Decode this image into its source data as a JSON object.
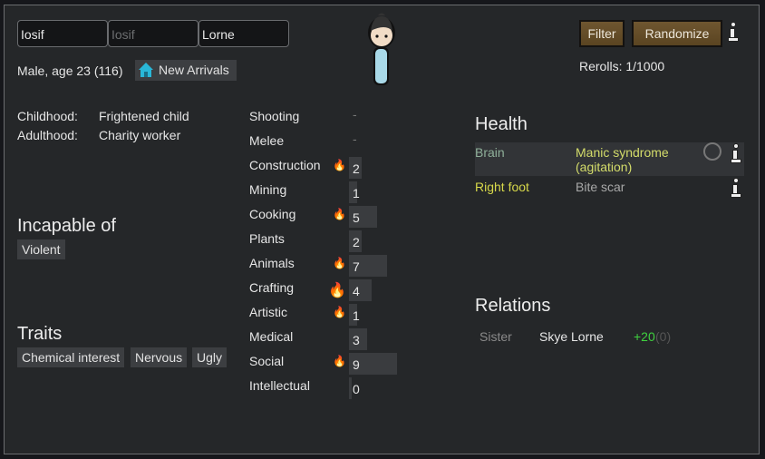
{
  "name": {
    "first": "Iosif",
    "nick_placeholder": "Iosif",
    "last": "Lorne"
  },
  "summary": "Male, age 23 (116)",
  "faction": {
    "label": "New Arrivals",
    "icon": "house-icon"
  },
  "buttons": {
    "filter": "Filter",
    "randomize": "Randomize"
  },
  "rerolls": "Rerolls: 1/1000",
  "backstory": [
    {
      "label": "Childhood:",
      "value": "Frightened child"
    },
    {
      "label": "Adulthood:",
      "value": "Charity worker"
    }
  ],
  "incapable": {
    "title": "Incapable of",
    "items": [
      "Violent"
    ]
  },
  "traits": {
    "title": "Traits",
    "items": [
      "Chemical interest",
      "Nervous",
      "Ugly"
    ]
  },
  "skills": [
    {
      "name": "Shooting",
      "level": "-",
      "passion": 0
    },
    {
      "name": "Melee",
      "level": "-",
      "passion": 0
    },
    {
      "name": "Construction",
      "level": "2",
      "passion": 1
    },
    {
      "name": "Mining",
      "level": "1",
      "passion": 0
    },
    {
      "name": "Cooking",
      "level": "5",
      "passion": 1
    },
    {
      "name": "Plants",
      "level": "2",
      "passion": 0
    },
    {
      "name": "Animals",
      "level": "7",
      "passion": 1
    },
    {
      "name": "Crafting",
      "level": "4",
      "passion": 2
    },
    {
      "name": "Artistic",
      "level": "1",
      "passion": 1
    },
    {
      "name": "Medical",
      "level": "3",
      "passion": 0
    },
    {
      "name": "Social",
      "level": "9",
      "passion": 1
    },
    {
      "name": "Intellectual",
      "level": "0",
      "passion": 0
    }
  ],
  "health": {
    "title": "Health",
    "rows": [
      {
        "part": "Brain",
        "condition": "Manic syndrome (agitation)",
        "part_color": "#8fb09a",
        "cond_color": "#d4dc6a"
      },
      {
        "part": "Right foot",
        "condition": "Bite scar",
        "part_color": "#d7d84a",
        "cond_color": "#a8a8a8"
      }
    ]
  },
  "relations": {
    "title": "Relations",
    "rows": [
      {
        "relation": "Sister",
        "name": "Skye Lorne",
        "opinion": "+20",
        "opinion_other": "(0)"
      }
    ]
  },
  "colors": {
    "accent_button": "#6a522b",
    "positive": "#3fd13f"
  }
}
